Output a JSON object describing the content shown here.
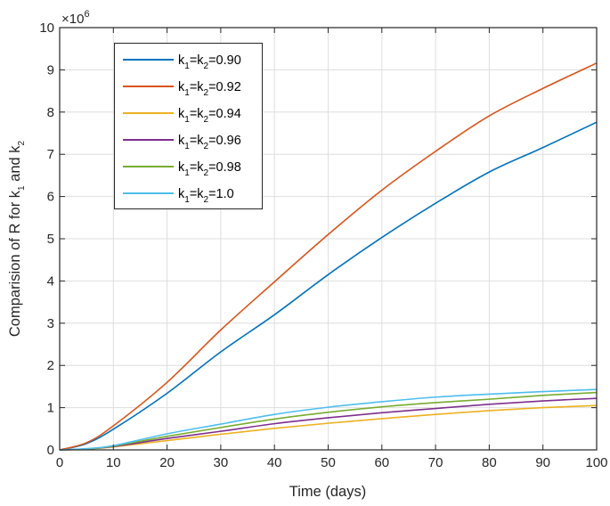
{
  "chart_data": {
    "type": "line",
    "title": "",
    "xlabel": "Time (days)",
    "ylabel": "Comparision of R for k_1 and k_2",
    "ylabel_parts": {
      "main": "Comparision of R for k",
      "sub1": "1",
      "mid": " and k",
      "sub2": "2"
    },
    "y_multiplier": "×10",
    "y_multiplier_exp": "6",
    "xlim": [
      0,
      100
    ],
    "ylim": [
      0,
      10
    ],
    "xticks": [
      0,
      10,
      20,
      30,
      40,
      50,
      60,
      70,
      80,
      90,
      100
    ],
    "yticks": [
      0,
      1,
      2,
      3,
      4,
      5,
      6,
      7,
      8,
      9,
      10
    ],
    "grid": true,
    "legend_position": "upper-left",
    "x": [
      0,
      5,
      10,
      20,
      30,
      40,
      50,
      60,
      70,
      80,
      90,
      100
    ],
    "series": [
      {
        "name": "k1=k2=0.90",
        "label_k": "k",
        "sub1": "1",
        "eq": "=k",
        "sub2": "2",
        "value": "=0.90",
        "color": "#0072BD",
        "values": [
          0,
          0.15,
          0.49,
          1.34,
          2.32,
          3.2,
          4.15,
          5.03,
          5.84,
          6.58,
          7.16,
          7.76
        ]
      },
      {
        "name": "k1=k2=0.92",
        "label_k": "k",
        "sub1": "1",
        "eq": "=k",
        "sub2": "2",
        "value": "=0.92",
        "color": "#D95319",
        "values": [
          0,
          0.17,
          0.57,
          1.6,
          2.84,
          3.98,
          5.1,
          6.15,
          7.07,
          7.91,
          8.56,
          9.16
        ]
      },
      {
        "name": "k1=k2=0.94",
        "label_k": "k",
        "sub1": "1",
        "eq": "=k",
        "sub2": "2",
        "value": "=0.94",
        "color": "#EDB120",
        "values": [
          0,
          0.02,
          0.07,
          0.22,
          0.37,
          0.51,
          0.63,
          0.74,
          0.84,
          0.93,
          1.0,
          1.05
        ]
      },
      {
        "name": "k1=k2=0.96",
        "label_k": "k",
        "sub1": "1",
        "eq": "=k",
        "sub2": "2",
        "value": "=0.96",
        "color": "#7E2F8E",
        "values": [
          0,
          0.02,
          0.08,
          0.27,
          0.44,
          0.62,
          0.76,
          0.88,
          0.98,
          1.08,
          1.16,
          1.22
        ]
      },
      {
        "name": "k1=k2=0.98",
        "label_k": "k",
        "sub1": "1",
        "eq": "=k",
        "sub2": "2",
        "value": "=0.98",
        "color": "#77AC30",
        "values": [
          0,
          0.02,
          0.09,
          0.32,
          0.53,
          0.73,
          0.89,
          1.02,
          1.12,
          1.2,
          1.29,
          1.36
        ]
      },
      {
        "name": "k1=k2=1.0",
        "label_k": "k",
        "sub1": "1",
        "eq": "=k",
        "sub2": "2",
        "value": "=1.0",
        "color": "#4DBEEE",
        "values": [
          0,
          0.03,
          0.1,
          0.38,
          0.61,
          0.84,
          1.01,
          1.14,
          1.25,
          1.32,
          1.38,
          1.43
        ]
      }
    ]
  }
}
